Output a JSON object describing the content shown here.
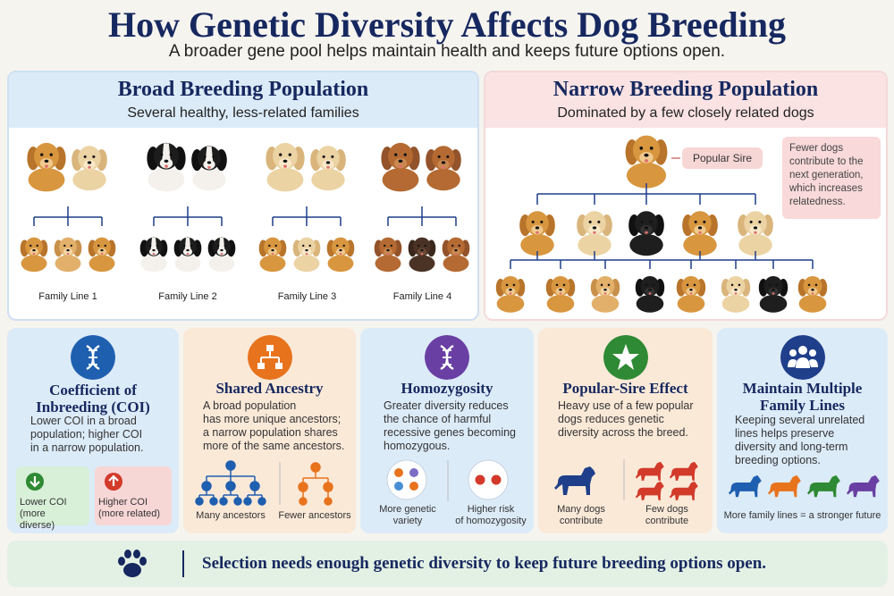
{
  "header": {
    "title": "How Genetic Diversity Affects Dog Breeding",
    "subtitle": "A broader gene pool helps maintain health and keeps future options open."
  },
  "broad": {
    "title": "Broad Breeding Population",
    "subtitle": "Several healthy, less-related families",
    "families": [
      {
        "label": "Family Line 1",
        "color": "#dcebf8",
        "coat": "golden"
      },
      {
        "label": "Family Line 2",
        "color": "#dcefdd",
        "coat": "tricolor"
      },
      {
        "label": "Family Line 3",
        "color": "#fbe6d2",
        "coat": "cream"
      },
      {
        "label": "Family Line 4",
        "color": "#e5e0f4",
        "coat": "doodle"
      }
    ]
  },
  "narrow": {
    "title": "Narrow Breeding Population",
    "subtitle": "Dominated by a few closely related dogs",
    "sire_label": "Popular Sire",
    "note": "Fewer dogs contribute to the next generation, which increases relatedness."
  },
  "cards": {
    "coi": {
      "title_line1": "Coefficient of",
      "title_line2": "Inbreeding (COI)",
      "body": [
        "Lower COI in a broad",
        "population; higher COI",
        "in a narrow population."
      ],
      "low_label": [
        "Lower COI",
        "(more diverse)"
      ],
      "high_label": [
        "Higher COI",
        "(more related)"
      ],
      "icon": "dna-icon",
      "color": "#1f5fb0"
    },
    "ancestry": {
      "title": "Shared Ancestry",
      "body": [
        "A broad population",
        "has more unique ancestors;",
        "a narrow population shares",
        "more of the same ancestors."
      ],
      "left_label": "Many ancestors",
      "right_label": "Fewer ancestors",
      "icon": "family-tree-icon",
      "color": "#e8731d"
    },
    "homozygosity": {
      "title": "Homozygosity",
      "body": [
        "Greater diversity reduces",
        "the chance of harmful",
        "recessive genes becoming",
        "homozygous."
      ],
      "left_label": [
        "More genetic",
        "variety"
      ],
      "right_label": [
        "Higher risk",
        "of homozygosity"
      ],
      "icon": "dna-icon",
      "color": "#6a3fa3"
    },
    "sire": {
      "title": "Popular-Sire Effect",
      "body": [
        "Heavy use of a few popular",
        "dogs reduces genetic",
        "diversity across the breed."
      ],
      "left_label": [
        "Many dogs",
        "contribute"
      ],
      "right_label": [
        "Few dogs",
        "contribute"
      ],
      "icon": "star-icon",
      "color": "#2e8a34"
    },
    "lines": {
      "title_line1": "Maintain Multiple",
      "title_line2": "Family Lines",
      "body": [
        "Keeping several unrelated",
        "lines helps preserve",
        "diversity and long-term",
        "breeding options."
      ],
      "footer": "More family lines = a stronger future",
      "icon": "group-icon",
      "color": "#1f3f8a"
    }
  },
  "banner": {
    "text": "Selection needs enough genetic diversity to keep future breeding options open.",
    "icon": "paw-icon"
  }
}
